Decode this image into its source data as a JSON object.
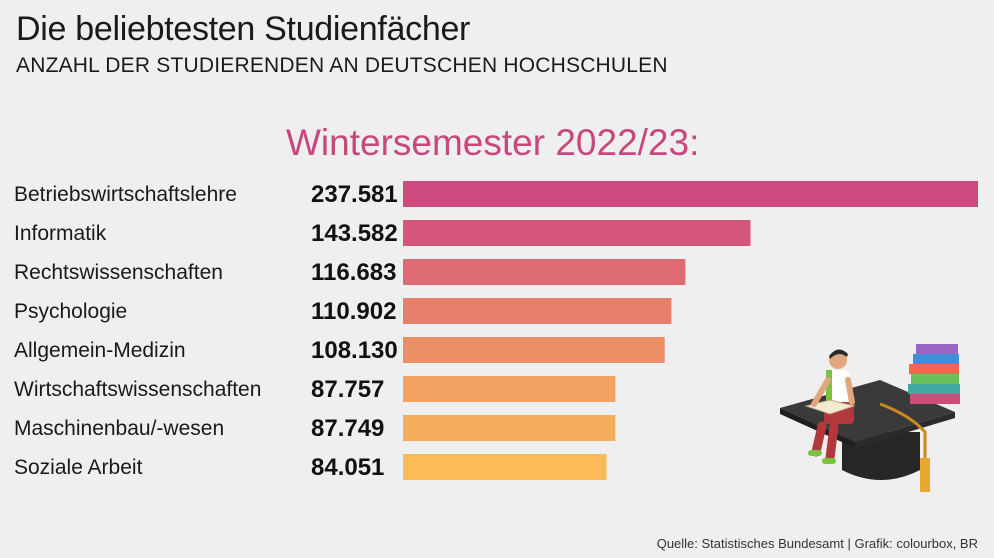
{
  "header": {
    "title": "Die beliebtesten Studienfächer",
    "subtitle": "ANZAHL DER STUDIERENDEN AN DEUTSCHEN HOCHSCHULEN"
  },
  "chart_data": {
    "type": "bar",
    "orientation": "horizontal",
    "title": "Wintersemester 2022/23:",
    "title_color": "#c8477d",
    "categories": [
      "Betriebswirtschaftslehre",
      "Informatik",
      "Rechtswissenschaften",
      "Psychologie",
      "Allgemein-Medizin",
      "Wirtschaftswissenschaften",
      "Maschinenbau/-wesen",
      "Soziale Arbeit"
    ],
    "values": [
      237581,
      143582,
      116683,
      110902,
      108130,
      87757,
      87749,
      84051
    ],
    "value_labels": [
      "237.581",
      "143.582",
      "116.683",
      "110.902",
      "108.130",
      "87.757",
      "87.749",
      "84.051"
    ],
    "colors": [
      "#cc4a7e",
      "#d4567a",
      "#de6a72",
      "#e6806c",
      "#eb8f66",
      "#f2a362",
      "#f6ae5e",
      "#fbbb56"
    ],
    "grid": false,
    "legend": "none"
  },
  "footer": {
    "source": "Quelle: Statistisches Bundesamt | Grafik: colourbox, BR"
  },
  "illustration": {
    "icon": "student-reading-on-graduation-cap-icon"
  }
}
